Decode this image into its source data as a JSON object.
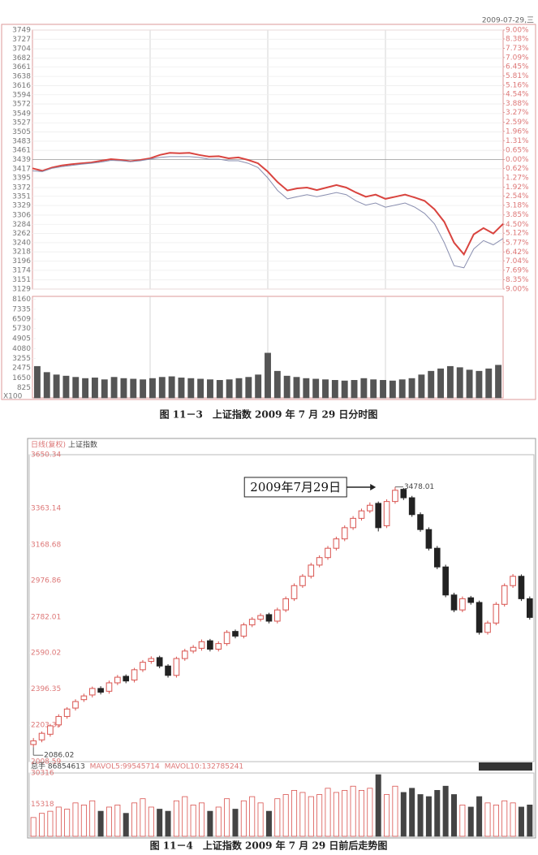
{
  "chart_data": [
    {
      "type": "line",
      "date_label": "2009-07-29,三",
      "ylim": [
        3129,
        3749
      ],
      "yticks": [
        3749,
        3727,
        3704,
        3682,
        3661,
        3638,
        3616,
        3594,
        3572,
        3549,
        3527,
        3505,
        3483,
        3461,
        3439,
        3417,
        3395,
        3372,
        3351,
        3329,
        3306,
        3284,
        3262,
        3240,
        3218,
        3196,
        3174,
        3151,
        3129
      ],
      "y2lim": [
        -9,
        9
      ],
      "y2ticks": [
        {
          "value": 9,
          "label": "9.00%"
        },
        {
          "value": 8.38,
          "label": "8.38%"
        },
        {
          "value": 7.73,
          "label": "7.73%"
        },
        {
          "value": 7.09,
          "label": "7.09%"
        },
        {
          "value": 6.45,
          "label": "6.45%"
        },
        {
          "value": 5.81,
          "label": "5.81%"
        },
        {
          "value": 5.16,
          "label": "5.16%"
        },
        {
          "value": 4.54,
          "label": "4.54%"
        },
        {
          "value": 3.88,
          "label": "3.88%"
        },
        {
          "value": 3.27,
          "label": "3.27%"
        },
        {
          "value": 2.59,
          "label": "2.59%"
        },
        {
          "value": 1.96,
          "label": "1.96%"
        },
        {
          "value": 1.31,
          "label": "1.31%"
        },
        {
          "value": 0.65,
          "label": "0.65%"
        },
        {
          "value": 0,
          "label": "0.00%"
        },
        {
          "value": -0.62,
          "label": "0.62%"
        },
        {
          "value": -1.27,
          "label": "1.27%"
        },
        {
          "value": -1.92,
          "label": "1.92%"
        },
        {
          "value": -2.54,
          "label": "2.54%"
        },
        {
          "value": -3.18,
          "label": "3.18%"
        },
        {
          "value": -3.85,
          "label": "3.85%"
        },
        {
          "value": -4.5,
          "label": "4.50%"
        },
        {
          "value": -5.12,
          "label": "5.12%"
        },
        {
          "value": -5.77,
          "label": "5.77%"
        },
        {
          "value": -6.42,
          "label": "6.42%"
        },
        {
          "value": -7.04,
          "label": "7.04%"
        },
        {
          "value": -7.69,
          "label": "7.69%"
        },
        {
          "value": -8.35,
          "label": "8.35%"
        },
        {
          "value": -9,
          "label": "9.00%"
        }
      ],
      "grid": true,
      "series": [
        {
          "color": "#d9443f",
          "values": [
            3418,
            3412,
            3420,
            3425,
            3428,
            3430,
            3432,
            3436,
            3440,
            3438,
            3435,
            3438,
            3442,
            3450,
            3455,
            3454,
            3455,
            3450,
            3446,
            3447,
            3442,
            3444,
            3438,
            3430,
            3410,
            3385,
            3365,
            3370,
            3372,
            3366,
            3372,
            3378,
            3372,
            3360,
            3350,
            3355,
            3345,
            3350,
            3355,
            3348,
            3340,
            3320,
            3290,
            3240,
            3212,
            3260,
            3275,
            3262,
            3285
          ]
        },
        {
          "color": "#8a8fb0",
          "values": [
            3412,
            3410,
            3418,
            3422,
            3425,
            3428,
            3430,
            3433,
            3437,
            3436,
            3434,
            3436,
            3440,
            3444,
            3446,
            3446,
            3446,
            3444,
            3440,
            3440,
            3436,
            3436,
            3430,
            3420,
            3395,
            3365,
            3345,
            3350,
            3355,
            3350,
            3355,
            3360,
            3355,
            3340,
            3330,
            3335,
            3325,
            3330,
            3335,
            3325,
            3310,
            3285,
            3240,
            3185,
            3180,
            3225,
            3245,
            3235,
            3250
          ]
        }
      ]
    },
    {
      "type": "bar",
      "title": "图 11－3　上证指数 2009 年 7 月 29 日分时图",
      "unit_label": "X100",
      "ylim": [
        0,
        8400
      ],
      "yticks": [
        8160,
        7335,
        6509,
        5730,
        4905,
        4080,
        3255,
        2475,
        1650,
        825
      ],
      "color": "#555555",
      "values": [
        2600,
        2100,
        1900,
        1800,
        1700,
        1600,
        1650,
        1500,
        1700,
        1600,
        1550,
        1500,
        1600,
        1700,
        1750,
        1650,
        1600,
        1550,
        1500,
        1450,
        1500,
        1600,
        1700,
        1900,
        3700,
        2200,
        1800,
        1700,
        1600,
        1550,
        1500,
        1450,
        1400,
        1450,
        1600,
        1500,
        1450,
        1400,
        1500,
        1600,
        1900,
        2200,
        2400,
        2600,
        2500,
        2300,
        2200,
        2400,
        2700
      ]
    },
    {
      "type": "candlestick",
      "period_label": "日线(复权)",
      "name": "上证指数",
      "annotation": "2009年7月29日",
      "ylim": [
        2008.59,
        3650.34
      ],
      "yticks": [
        3650.34,
        3363.14,
        3168.68,
        2976.86,
        2782.01,
        2590.02,
        2396.35,
        2203.35,
        2008.59
      ],
      "up_color": "#d9534f",
      "down_color": "#222222",
      "open": [
        2100,
        2125,
        2155,
        2205,
        2250,
        2295,
        2340,
        2365,
        2400,
        2385,
        2430,
        2465,
        2445,
        2500,
        2545,
        2565,
        2520,
        2470,
        2560,
        2600,
        2615,
        2655,
        2610,
        2640,
        2705,
        2680,
        2740,
        2770,
        2795,
        2760,
        2820,
        2880,
        2950,
        3000,
        3060,
        3100,
        3150,
        3200,
        3260,
        3310,
        3350,
        3390,
        3270,
        3400,
        3465,
        3420,
        3330,
        3250,
        3150,
        3050,
        2900,
        2820,
        2885,
        2860,
        2700,
        2750,
        2850,
        2950,
        3000,
        2880
      ],
      "high": [
        2135,
        2170,
        2210,
        2262,
        2300,
        2342,
        2372,
        2410,
        2412,
        2442,
        2472,
        2475,
        2510,
        2552,
        2572,
        2575,
        2530,
        2570,
        2612,
        2632,
        2662,
        2665,
        2652,
        2712,
        2715,
        2752,
        2782,
        2802,
        2805,
        2832,
        2892,
        2962,
        3012,
        3072,
        3112,
        3162,
        3212,
        3272,
        3322,
        3362,
        3395,
        3400,
        3412,
        3478.01,
        3472,
        3430,
        3342,
        3262,
        3162,
        3062,
        2912,
        2892,
        2895,
        2870,
        2762,
        2862,
        2962,
        3012,
        3010,
        2892
      ],
      "low": [
        2086.02,
        2112,
        2142,
        2192,
        2238,
        2282,
        2328,
        2352,
        2368,
        2372,
        2418,
        2428,
        2432,
        2488,
        2532,
        2508,
        2458,
        2458,
        2548,
        2588,
        2602,
        2598,
        2598,
        2628,
        2668,
        2668,
        2728,
        2758,
        2748,
        2748,
        2808,
        2868,
        2938,
        2988,
        3048,
        3088,
        3138,
        3188,
        3248,
        3298,
        3338,
        3240,
        3258,
        3388,
        3408,
        3318,
        3238,
        3138,
        3038,
        2888,
        2808,
        2808,
        2848,
        2688,
        2688,
        2738,
        2838,
        2938,
        2868,
        2768
      ],
      "close": [
        2120,
        2160,
        2200,
        2250,
        2290,
        2330,
        2360,
        2400,
        2380,
        2430,
        2460,
        2440,
        2500,
        2540,
        2560,
        2520,
        2470,
        2560,
        2600,
        2620,
        2650,
        2610,
        2640,
        2700,
        2680,
        2740,
        2770,
        2790,
        2760,
        2820,
        2880,
        2950,
        3000,
        3060,
        3100,
        3150,
        3200,
        3260,
        3310,
        3350,
        3380,
        3260,
        3400,
        3460,
        3420,
        3330,
        3250,
        3150,
        3050,
        2900,
        2820,
        2880,
        2860,
        2700,
        2750,
        2850,
        2950,
        3000,
        2880,
        2780
      ]
    },
    {
      "type": "bar",
      "title": "图 11－4　上证指数 2009 年 7 月 29 日前后走势图",
      "legend": [
        "总手 86854613",
        "MAVOL5:99545714",
        "MAVOL10:132785241"
      ],
      "ylim": [
        0,
        30316
      ],
      "yticks": [
        30316,
        15318
      ],
      "color": "#444444",
      "values": [
        9000,
        11000,
        12000,
        14000,
        13000,
        16000,
        15000,
        17000,
        12000,
        14000,
        15000,
        11000,
        16000,
        18000,
        14000,
        13000,
        12000,
        17000,
        19000,
        15000,
        16000,
        12000,
        14000,
        18000,
        13000,
        17000,
        19000,
        16000,
        12000,
        18000,
        20000,
        22000,
        21000,
        19000,
        20000,
        23000,
        21000,
        22000,
        24000,
        22000,
        23000,
        29500,
        20000,
        24000,
        21000,
        23000,
        20000,
        19000,
        22000,
        24000,
        20000,
        15000,
        14000,
        19000,
        16000,
        15000,
        17000,
        16000,
        14000,
        15000
      ]
    }
  ]
}
